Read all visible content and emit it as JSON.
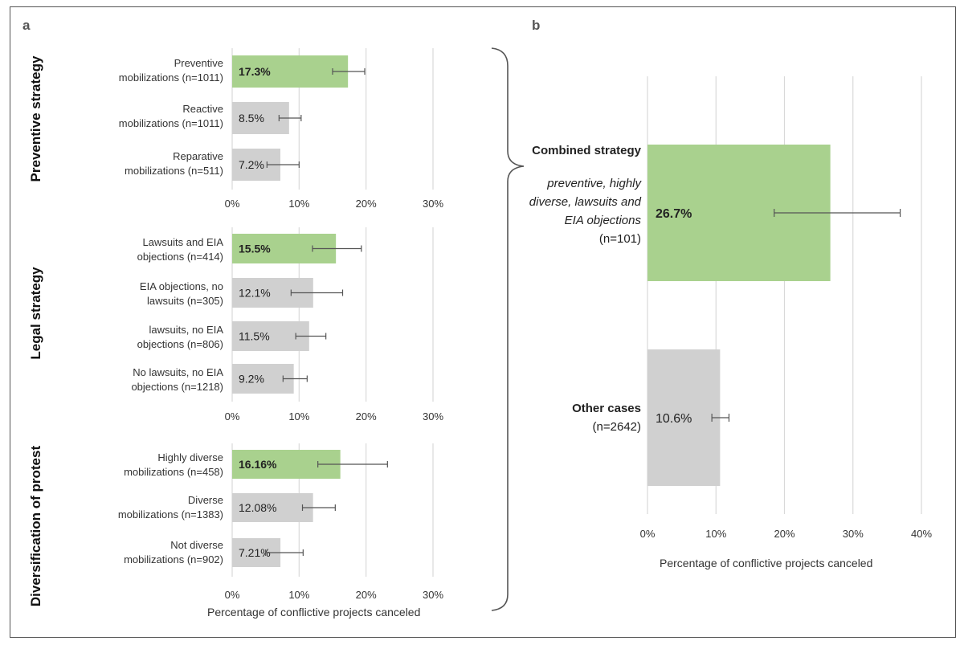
{
  "panel_a_letter": "a",
  "panel_b_letter": "b",
  "colors": {
    "highlight": "#a9d18e",
    "other": "#d0d0d0",
    "grid": "#d9d9d9",
    "errorbar": "#555555"
  },
  "chart_data": [
    {
      "type": "bar",
      "orientation": "horizontal",
      "group_label": "Preventive strategy",
      "categories": [
        "Preventive\nmobilizations (n=1011)",
        "Reactive\nmobilizations (n=1011)",
        "Reparative\nmobilizations  (n=511)"
      ],
      "values": [
        17.3,
        8.5,
        7.2
      ],
      "data_labels": [
        "17.3%",
        "8.5%",
        "7.2%"
      ],
      "error_low": [
        15.0,
        7.0,
        5.2
      ],
      "error_high": [
        19.8,
        10.3,
        10.0
      ],
      "highlight": [
        true,
        false,
        false
      ],
      "xlim": [
        0,
        30
      ],
      "xticks": [
        "0%",
        "10%",
        "20%",
        "30%"
      ],
      "grid": true
    },
    {
      "type": "bar",
      "orientation": "horizontal",
      "group_label": "Legal strategy",
      "categories": [
        "Lawsuits and EIA\nobjections (n=414)",
        "EIA objections, no\nlawsuits (n=305)",
        "lawsuits, no EIA\nobjections (n=806)",
        "No lawsuits, no EIA\nobjections (n=1218)"
      ],
      "values": [
        15.5,
        12.1,
        11.5,
        9.2
      ],
      "data_labels": [
        "15.5%",
        "12.1%",
        "11.5%",
        "9.2%"
      ],
      "error_low": [
        12.0,
        8.8,
        9.5,
        7.6
      ],
      "error_high": [
        19.3,
        16.5,
        14.0,
        11.2
      ],
      "highlight": [
        true,
        false,
        false,
        false
      ],
      "xlim": [
        0,
        30
      ],
      "xticks": [
        "0%",
        "10%",
        "20%",
        "30%"
      ],
      "grid": true
    },
    {
      "type": "bar",
      "orientation": "horizontal",
      "group_label": "Diversification of protest",
      "categories": [
        "Highly diverse\nmobilizations (n=458)",
        "Diverse\nmobilizations (n=1383)",
        "Not diverse\nmobilizations (n=902)"
      ],
      "values": [
        16.16,
        12.08,
        7.21
      ],
      "data_labels": [
        "16.16%",
        "12.08%",
        "7.21%"
      ],
      "error_low": [
        12.8,
        10.5,
        5.0
      ],
      "error_high": [
        23.2,
        15.4,
        10.6
      ],
      "highlight": [
        true,
        false,
        false
      ],
      "xlim": [
        0,
        30
      ],
      "xticks": [
        "0%",
        "10%",
        "20%",
        "30%"
      ],
      "xlabel": "Percentage of conflictive projects canceled",
      "grid": true
    },
    {
      "type": "bar",
      "orientation": "horizontal",
      "categories": [
        {
          "title": "Combined strategy",
          "detail": "preventive, highly diverse, lawsuits and EIA objections",
          "n": "(n=101)"
        },
        {
          "title": "Other cases",
          "detail": "",
          "n": "(n=2642)"
        }
      ],
      "values": [
        26.7,
        10.6
      ],
      "data_labels": [
        "26.7%",
        "10.6%"
      ],
      "error_low": [
        18.5,
        9.4
      ],
      "error_high": [
        36.9,
        11.9
      ],
      "highlight": [
        true,
        false
      ],
      "xlim": [
        0,
        40
      ],
      "xticks": [
        "0%",
        "10%",
        "20%",
        "30%",
        "40%"
      ],
      "xlabel": "Percentage of conflictive projects canceled",
      "grid": true
    }
  ]
}
